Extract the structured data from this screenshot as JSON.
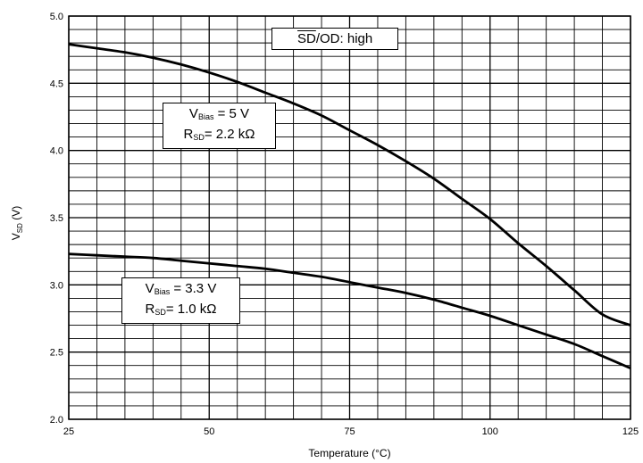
{
  "chart_data": {
    "type": "line",
    "xlabel": "Temperature (°C)",
    "ylabel": {
      "main": "V",
      "sub": "SD",
      "unit": " (V)"
    },
    "xlim": [
      25,
      125
    ],
    "ylim": [
      2.0,
      5.0
    ],
    "xticks": [
      25,
      50,
      75,
      100,
      125
    ],
    "yticks": [
      2.0,
      2.5,
      3.0,
      3.5,
      4.0,
      4.5,
      5.0
    ],
    "xtick_labels": [
      "25",
      "50",
      "75",
      "100",
      "125"
    ],
    "ytick_labels": [
      "2.0",
      "2.5",
      "3.0",
      "3.5",
      "4.0",
      "4.5",
      "5.0"
    ],
    "grid": true,
    "grid_minor": {
      "x_step": 5,
      "y_step": 0.1
    },
    "series": [
      {
        "x": [
          25,
          30,
          35,
          40,
          45,
          50,
          55,
          60,
          65,
          70,
          75,
          80,
          85,
          90,
          95,
          100,
          105,
          110,
          115,
          120,
          125
        ],
        "y": [
          4.79,
          4.76,
          4.73,
          4.69,
          4.64,
          4.58,
          4.51,
          4.43,
          4.35,
          4.26,
          4.15,
          4.04,
          3.92,
          3.79,
          3.64,
          3.49,
          3.31,
          3.14,
          2.96,
          2.78,
          2.7
        ],
        "annotation": {
          "line1_main": "V",
          "line1_sub": "Bias",
          "line1_rest": " = 5 V",
          "line2_main": "R",
          "line2_sub": "SD",
          "line2_rest": "= 2.2 kΩ"
        }
      },
      {
        "x": [
          25,
          30,
          35,
          40,
          45,
          50,
          55,
          60,
          65,
          70,
          75,
          80,
          85,
          90,
          95,
          100,
          105,
          110,
          115,
          120,
          125
        ],
        "y": [
          3.23,
          3.22,
          3.21,
          3.2,
          3.18,
          3.16,
          3.14,
          3.12,
          3.09,
          3.06,
          3.02,
          2.98,
          2.94,
          2.89,
          2.83,
          2.77,
          2.7,
          2.63,
          2.56,
          2.47,
          2.38
        ],
        "annotation": {
          "line1_main": "V",
          "line1_sub": "Bias",
          "line1_rest": " = 3.3 V",
          "line2_main": "R",
          "line2_sub": "SD",
          "line2_rest": "= 1.0 kΩ"
        }
      }
    ],
    "condition_label": {
      "overlined": "SD",
      "rest": "/OD: high"
    }
  }
}
